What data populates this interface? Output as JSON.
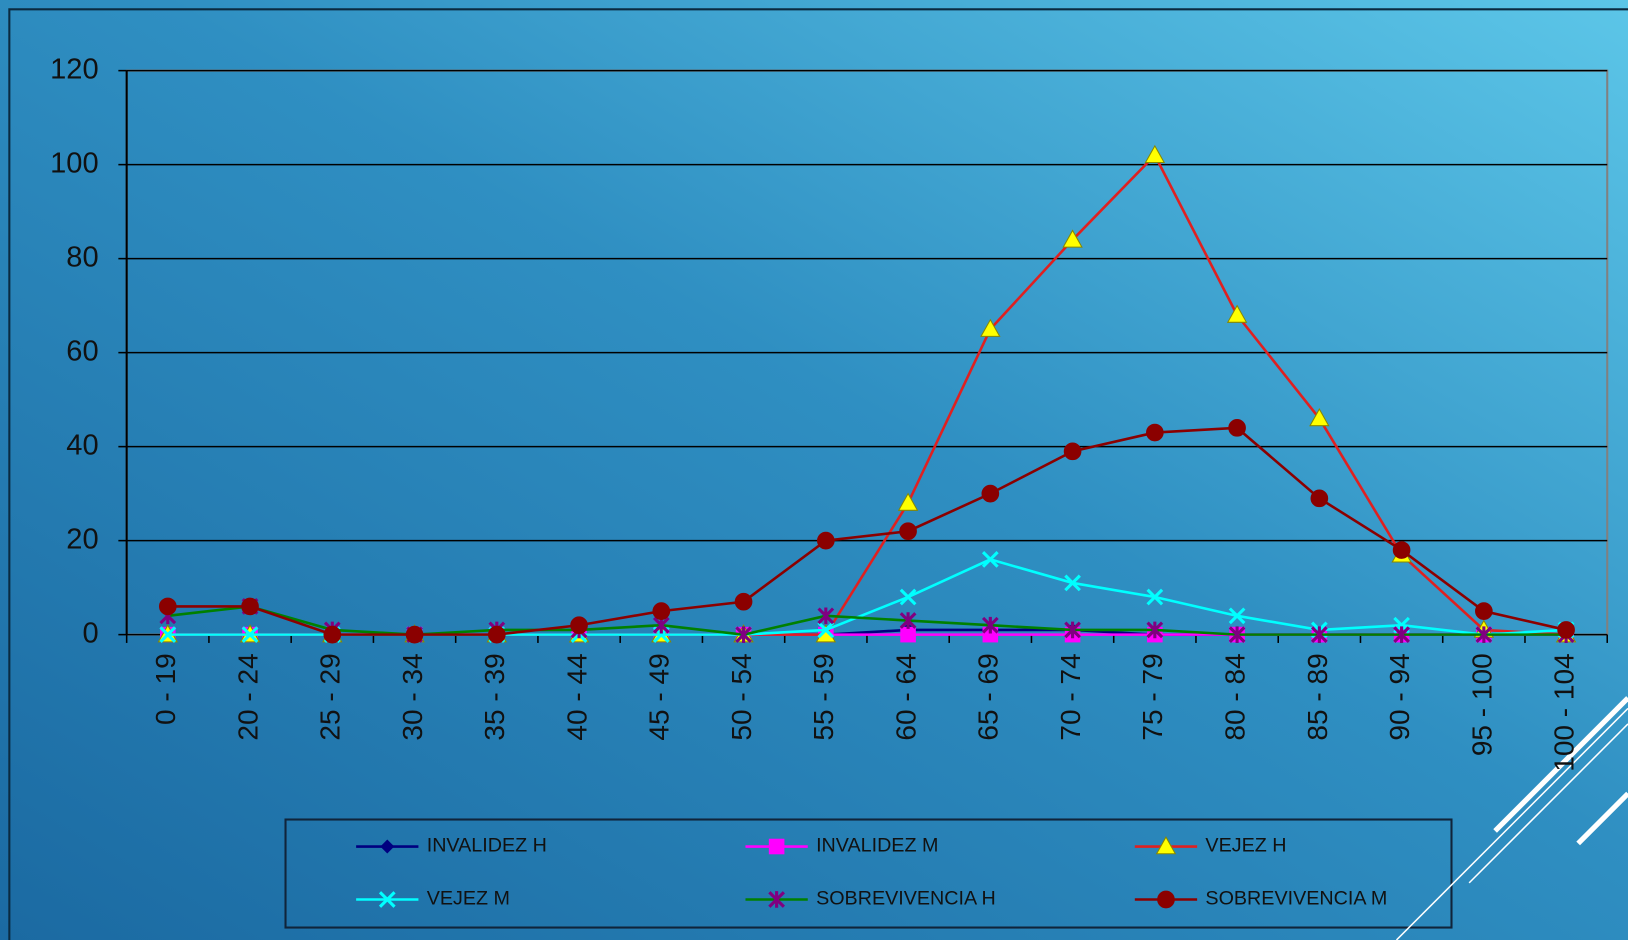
{
  "chart_data": {
    "type": "line",
    "categories": [
      "0 - 19",
      "20 - 24",
      "25 - 29",
      "30 - 34",
      "35 - 39",
      "40 - 44",
      "45 - 49",
      "50 - 54",
      "55 - 59",
      "60 - 64",
      "65 - 69",
      "70 - 74",
      "75 - 79",
      "80 - 84",
      "85 - 89",
      "90 - 94",
      "95 - 100",
      "100 - 104"
    ],
    "series": [
      {
        "name": "INVALIDEZ H",
        "color": "#000080",
        "marker": "diamond",
        "marker_color": "#000080",
        "values": [
          0,
          0,
          0,
          0,
          0,
          0,
          0,
          0,
          0,
          1,
          1,
          1,
          0,
          0,
          0,
          0,
          0,
          0
        ]
      },
      {
        "name": "INVALIDEZ M",
        "color": "#ff00ff",
        "marker": "square",
        "marker_color": "#ff00ff",
        "values": [
          0,
          0,
          0,
          0,
          0,
          0,
          0,
          0,
          0,
          0,
          0,
          0,
          0,
          0,
          0,
          0,
          0,
          0
        ]
      },
      {
        "name": "VEJEZ H",
        "color": "#e02020",
        "marker": "triangle",
        "marker_color": "#ffff00",
        "values": [
          0,
          0,
          0,
          0,
          0,
          0,
          0,
          0,
          0,
          28,
          65,
          84,
          102,
          68,
          46,
          17,
          1,
          0
        ]
      },
      {
        "name": "VEJEZ M",
        "color": "#00ffff",
        "marker": "x",
        "marker_color": "#00ffff",
        "values": [
          0,
          0,
          0,
          0,
          0,
          0,
          0,
          0,
          1,
          8,
          16,
          11,
          8,
          4,
          1,
          2,
          0,
          1
        ]
      },
      {
        "name": "SOBREVIVENCIA H",
        "color": "#008000",
        "marker": "star",
        "marker_color": "#800080",
        "values": [
          4,
          6,
          1,
          0,
          1,
          1,
          2,
          0,
          4,
          3,
          2,
          1,
          1,
          0,
          0,
          0,
          0,
          0
        ]
      },
      {
        "name": "SOBREVIVENCIA M",
        "color": "#8b0000",
        "marker": "circle",
        "marker_color": "#8b0000",
        "values": [
          6,
          6,
          0,
          0,
          0,
          2,
          5,
          7,
          20,
          22,
          30,
          39,
          43,
          44,
          29,
          18,
          5,
          1
        ]
      }
    ],
    "ylim": [
      0,
      120
    ],
    "yticks": [
      0,
      20,
      40,
      60,
      80,
      100,
      120
    ],
    "grid": true
  }
}
